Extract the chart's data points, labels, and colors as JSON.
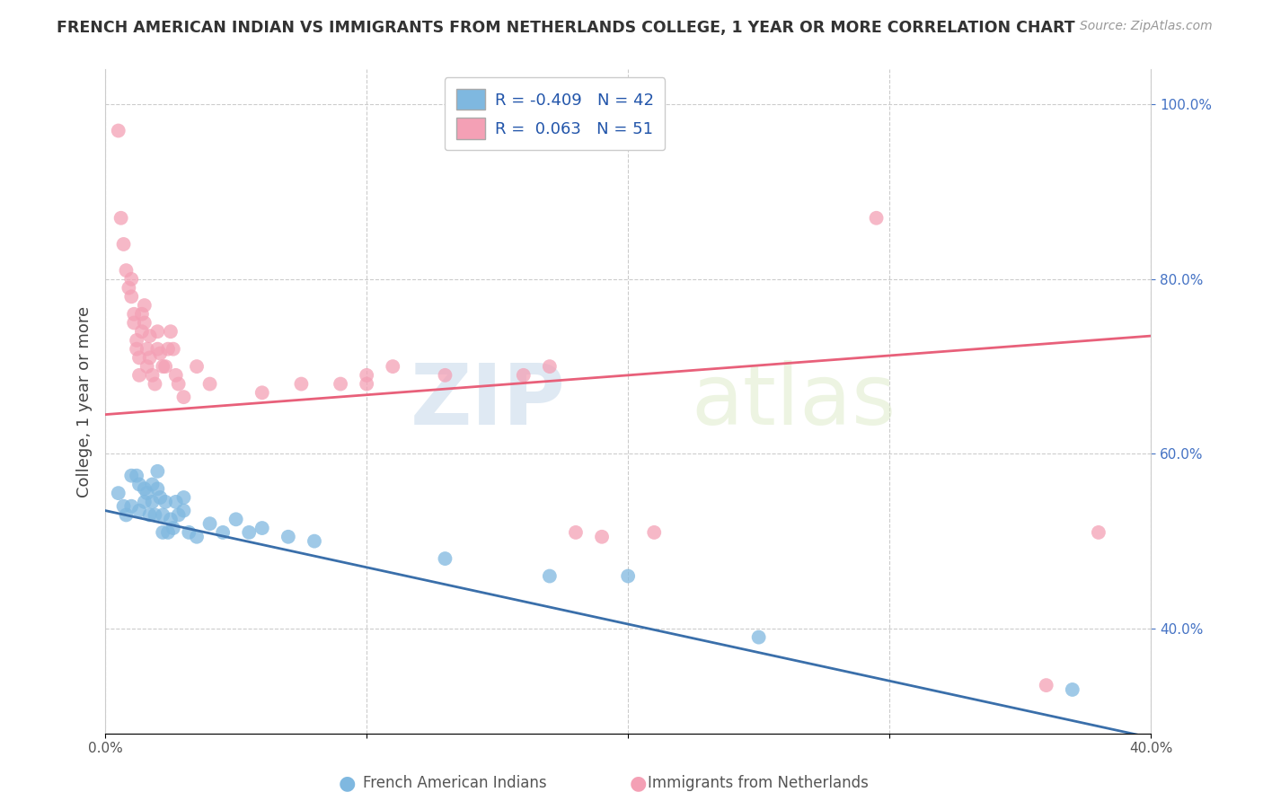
{
  "title": "FRENCH AMERICAN INDIAN VS IMMIGRANTS FROM NETHERLANDS COLLEGE, 1 YEAR OR MORE CORRELATION CHART",
  "source": "Source: ZipAtlas.com",
  "xlabel": "",
  "ylabel": "College, 1 year or more",
  "xlim": [
    0.0,
    0.4
  ],
  "ylim": [
    0.28,
    1.04
  ],
  "x_ticks": [
    0.0,
    0.1,
    0.2,
    0.3,
    0.4
  ],
  "x_tick_labels": [
    "0.0%",
    "",
    "",
    "",
    "40.0%"
  ],
  "y_ticks": [
    0.4,
    0.6,
    0.8,
    1.0
  ],
  "y_tick_labels": [
    "40.0%",
    "60.0%",
    "80.0%",
    "100.0%"
  ],
  "watermark_zip": "ZIP",
  "watermark_atlas": "atlas",
  "legend_R_blue": "-0.409",
  "legend_N_blue": "42",
  "legend_R_pink": "0.063",
  "legend_N_pink": "51",
  "blue_color": "#7fb8e0",
  "pink_color": "#f4a0b5",
  "blue_line_color": "#3a6faa",
  "pink_line_color": "#e8607a",
  "blue_line_x": [
    0.0,
    0.4
  ],
  "blue_line_y": [
    0.535,
    0.275
  ],
  "pink_line_x": [
    0.0,
    0.4
  ],
  "pink_line_y": [
    0.645,
    0.735
  ],
  "blue_scatter": [
    [
      0.005,
      0.555
    ],
    [
      0.007,
      0.54
    ],
    [
      0.008,
      0.53
    ],
    [
      0.01,
      0.575
    ],
    [
      0.01,
      0.54
    ],
    [
      0.012,
      0.575
    ],
    [
      0.013,
      0.565
    ],
    [
      0.013,
      0.535
    ],
    [
      0.015,
      0.56
    ],
    [
      0.015,
      0.545
    ],
    [
      0.016,
      0.555
    ],
    [
      0.017,
      0.53
    ],
    [
      0.018,
      0.565
    ],
    [
      0.018,
      0.545
    ],
    [
      0.019,
      0.53
    ],
    [
      0.02,
      0.58
    ],
    [
      0.02,
      0.56
    ],
    [
      0.021,
      0.55
    ],
    [
      0.022,
      0.53
    ],
    [
      0.022,
      0.51
    ],
    [
      0.023,
      0.545
    ],
    [
      0.024,
      0.51
    ],
    [
      0.025,
      0.525
    ],
    [
      0.026,
      0.515
    ],
    [
      0.027,
      0.545
    ],
    [
      0.028,
      0.53
    ],
    [
      0.03,
      0.55
    ],
    [
      0.03,
      0.535
    ],
    [
      0.032,
      0.51
    ],
    [
      0.035,
      0.505
    ],
    [
      0.04,
      0.52
    ],
    [
      0.045,
      0.51
    ],
    [
      0.05,
      0.525
    ],
    [
      0.055,
      0.51
    ],
    [
      0.06,
      0.515
    ],
    [
      0.07,
      0.505
    ],
    [
      0.08,
      0.5
    ],
    [
      0.13,
      0.48
    ],
    [
      0.17,
      0.46
    ],
    [
      0.2,
      0.46
    ],
    [
      0.25,
      0.39
    ],
    [
      0.37,
      0.33
    ]
  ],
  "pink_scatter": [
    [
      0.005,
      0.97
    ],
    [
      0.006,
      0.87
    ],
    [
      0.007,
      0.84
    ],
    [
      0.008,
      0.81
    ],
    [
      0.009,
      0.79
    ],
    [
      0.01,
      0.8
    ],
    [
      0.01,
      0.78
    ],
    [
      0.011,
      0.76
    ],
    [
      0.011,
      0.75
    ],
    [
      0.012,
      0.73
    ],
    [
      0.012,
      0.72
    ],
    [
      0.013,
      0.71
    ],
    [
      0.013,
      0.69
    ],
    [
      0.014,
      0.76
    ],
    [
      0.014,
      0.74
    ],
    [
      0.015,
      0.77
    ],
    [
      0.015,
      0.75
    ],
    [
      0.016,
      0.72
    ],
    [
      0.016,
      0.7
    ],
    [
      0.017,
      0.735
    ],
    [
      0.017,
      0.71
    ],
    [
      0.018,
      0.69
    ],
    [
      0.019,
      0.68
    ],
    [
      0.02,
      0.74
    ],
    [
      0.02,
      0.72
    ],
    [
      0.021,
      0.715
    ],
    [
      0.022,
      0.7
    ],
    [
      0.023,
      0.7
    ],
    [
      0.024,
      0.72
    ],
    [
      0.025,
      0.74
    ],
    [
      0.026,
      0.72
    ],
    [
      0.027,
      0.69
    ],
    [
      0.028,
      0.68
    ],
    [
      0.03,
      0.665
    ],
    [
      0.035,
      0.7
    ],
    [
      0.04,
      0.68
    ],
    [
      0.06,
      0.67
    ],
    [
      0.075,
      0.68
    ],
    [
      0.09,
      0.68
    ],
    [
      0.1,
      0.69
    ],
    [
      0.1,
      0.68
    ],
    [
      0.11,
      0.7
    ],
    [
      0.13,
      0.69
    ],
    [
      0.16,
      0.69
    ],
    [
      0.17,
      0.7
    ],
    [
      0.18,
      0.51
    ],
    [
      0.19,
      0.505
    ],
    [
      0.21,
      0.51
    ],
    [
      0.295,
      0.87
    ],
    [
      0.36,
      0.335
    ],
    [
      0.38,
      0.51
    ]
  ]
}
